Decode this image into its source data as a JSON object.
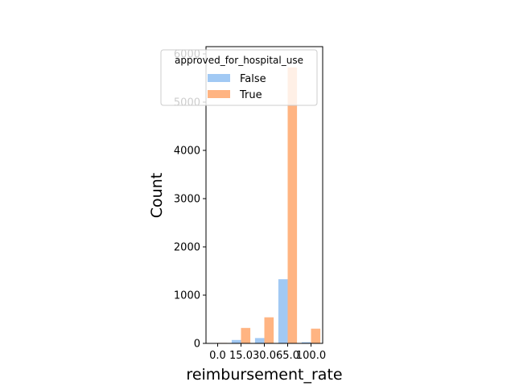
{
  "chart_data": {
    "type": "bar",
    "categories": [
      "0.0",
      "15.0",
      "30.0",
      "65.0",
      "100.0"
    ],
    "series": [
      {
        "name": "False",
        "color": "#a1c9f4",
        "values": [
          5,
          70,
          110,
          1330,
          25
        ]
      },
      {
        "name": "True",
        "color": "#ffb482",
        "values": [
          10,
          320,
          540,
          5720,
          305
        ]
      }
    ],
    "xlabel": "reimbursement_rate",
    "ylabel": "Count",
    "ylim": [
      0,
      6150
    ],
    "yticks": [
      0,
      1000,
      2000,
      3000,
      4000,
      5000,
      6000
    ],
    "legend": {
      "title": "approved_for_hospital_use",
      "placement": "top-right",
      "entries": [
        "False",
        "True"
      ]
    },
    "grid": false
  }
}
